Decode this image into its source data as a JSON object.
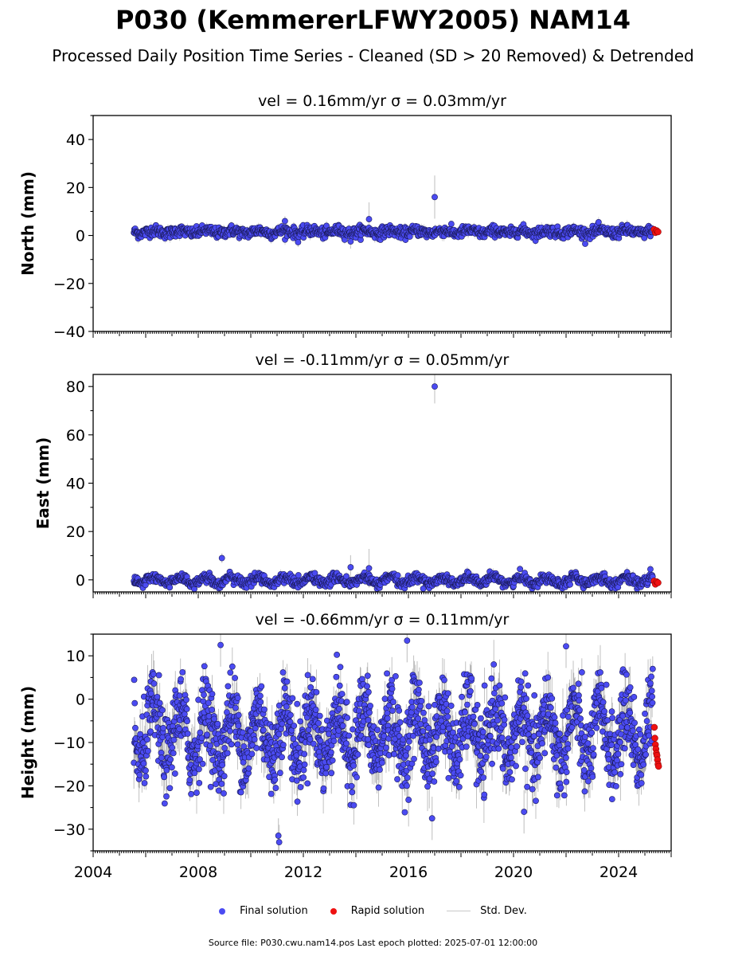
{
  "title": "P030 (KemmererLFWY2005) NAM14",
  "subtitle": "Processed Daily Position Time Series - Cleaned (SD > 20 Removed) & Detrended",
  "legend": {
    "final": "Final solution",
    "rapid": "Rapid solution",
    "std": "Std. Dev."
  },
  "footer": "Source file: P030.cwu.nam14.pos  Last epoch plotted: 2025-07-01 12:00:00",
  "colors": {
    "final": "#4b4bf2",
    "rapid": "#ee1111",
    "std": "#c8c8c8",
    "edge": "#1a1a5a"
  },
  "chart_data": [
    {
      "type": "scatter",
      "title": "vel = 0.16mm/yr   σ = 0.03mm/yr",
      "ylabel": "North (mm)",
      "xlim": [
        2004.0,
        2026.0
      ],
      "ylim": [
        -40,
        50
      ],
      "yticks": [
        -40,
        -20,
        0,
        20,
        40
      ],
      "grid": false,
      "series": [
        {
          "name": "Final solution",
          "summary": {
            "start": 2005.55,
            "end": 2025.3,
            "center": 1.5,
            "seasonal_amplitude": 0.6,
            "scatter": 1.1
          },
          "outliers": [
            {
              "x": 2017.0,
              "y": 16.0,
              "sd": 9
            },
            {
              "x": 2014.5,
              "y": 6.8,
              "sd": 7
            },
            {
              "x": 2011.3,
              "y": 6.0,
              "sd": 2
            },
            {
              "x": 2013.8,
              "y": -2.5,
              "sd": 3
            },
            {
              "x": 2011.8,
              "y": -2.8,
              "sd": 2
            }
          ]
        },
        {
          "name": "Rapid solution",
          "points": [
            {
              "x": 2025.35,
              "y": 2.5
            },
            {
              "x": 2025.4,
              "y": 1.2
            },
            {
              "x": 2025.45,
              "y": 2.0
            },
            {
              "x": 2025.5,
              "y": 1.5
            }
          ]
        }
      ]
    },
    {
      "type": "scatter",
      "title": "vel = -0.11mm/yr   σ = 0.05mm/yr",
      "ylabel": "East (mm)",
      "xlim": [
        2004.0,
        2026.0
      ],
      "ylim": [
        -5,
        85
      ],
      "yticks": [
        0,
        20,
        40,
        60,
        80
      ],
      "grid": false,
      "series": [
        {
          "name": "Final solution",
          "summary": {
            "start": 2005.55,
            "end": 2025.3,
            "center": -0.2,
            "seasonal_amplitude": 1.4,
            "scatter": 1.0
          },
          "outliers": [
            {
              "x": 2017.0,
              "y": 80.0,
              "sd": 7
            },
            {
              "x": 2008.9,
              "y": 9.0,
              "sd": 2
            },
            {
              "x": 2013.8,
              "y": 5.2,
              "sd": 5
            },
            {
              "x": 2014.5,
              "y": 4.8,
              "sd": 8
            }
          ]
        },
        {
          "name": "Rapid solution",
          "points": [
            {
              "x": 2025.35,
              "y": -0.5
            },
            {
              "x": 2025.4,
              "y": -1.8
            },
            {
              "x": 2025.45,
              "y": -0.8
            },
            {
              "x": 2025.5,
              "y": -1.2
            }
          ]
        }
      ]
    },
    {
      "type": "scatter",
      "title": "vel = -0.66mm/yr   σ = 0.11mm/yr",
      "ylabel": "Height (mm)",
      "xlim": [
        2004.0,
        2026.0
      ],
      "ylim": [
        -35,
        15
      ],
      "yticks": [
        -30,
        -20,
        -10,
        0,
        10
      ],
      "grid": false,
      "xticks": [
        2004,
        2008,
        2012,
        2016,
        2020,
        2024
      ],
      "series": [
        {
          "name": "Final solution",
          "summary": {
            "start": 2005.55,
            "end": 2025.3,
            "center": -8.0,
            "seasonal_amplitude": 6.0,
            "scatter": 4.5
          },
          "outliers": [
            {
              "x": 2011.05,
              "y": -31.5,
              "sd": 4
            },
            {
              "x": 2011.08,
              "y": -33.0,
              "sd": 4
            },
            {
              "x": 2015.95,
              "y": 13.5,
              "sd": 5
            },
            {
              "x": 2008.85,
              "y": 12.5,
              "sd": 5
            },
            {
              "x": 2022.0,
              "y": 12.2,
              "sd": 5
            },
            {
              "x": 2020.4,
              "y": -26.0,
              "sd": 5
            },
            {
              "x": 2016.9,
              "y": -27.5,
              "sd": 5
            }
          ]
        },
        {
          "name": "Rapid solution",
          "points": [
            {
              "x": 2025.36,
              "y": -6.5
            },
            {
              "x": 2025.38,
              "y": -9.0
            },
            {
              "x": 2025.4,
              "y": -10.5
            },
            {
              "x": 2025.42,
              "y": -11.5
            },
            {
              "x": 2025.44,
              "y": -12.5
            },
            {
              "x": 2025.46,
              "y": -13.0
            },
            {
              "x": 2025.48,
              "y": -14.0
            },
            {
              "x": 2025.5,
              "y": -15.0
            },
            {
              "x": 2025.52,
              "y": -15.5
            }
          ]
        }
      ]
    }
  ]
}
